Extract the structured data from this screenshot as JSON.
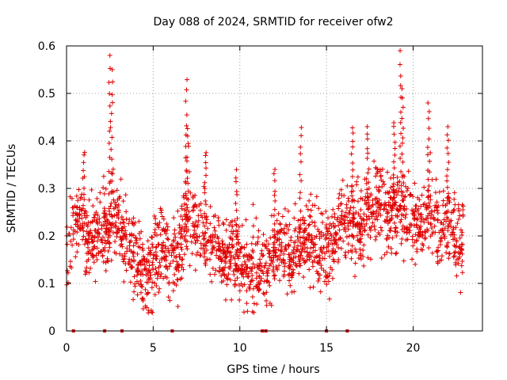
{
  "chart_data": {
    "type": "scatter",
    "title": "Day 088 of 2024, SRMTID for receiver ofw2",
    "xlabel": "GPS time / hours",
    "ylabel": "SRMTID / TECUs",
    "xlim": [
      0,
      24
    ],
    "ylim": [
      0,
      0.6
    ],
    "xticks": [
      0,
      5,
      10,
      15,
      20
    ],
    "yticks": [
      0,
      0.1,
      0.2,
      0.3,
      0.4,
      0.5,
      0.6
    ],
    "xtick_labels": [
      "0",
      "5",
      "10",
      "15",
      "20"
    ],
    "ytick_labels": [
      "0",
      "0.1",
      "0.2",
      "0.3",
      "0.4",
      "0.5",
      "0.6"
    ],
    "grid": true,
    "marker": "+",
    "color": "#e00000",
    "trend": {
      "x": [
        0.0,
        0.4,
        0.8,
        1.2,
        1.6,
        2.0,
        2.4,
        2.7,
        3.0,
        3.5,
        4.0,
        4.5,
        5.0,
        5.5,
        6.0,
        6.5,
        7.0,
        7.5,
        8.0,
        8.5,
        9.0,
        9.5,
        10.0,
        10.5,
        11.0,
        11.5,
        12.0,
        12.5,
        13.0,
        13.5,
        14.0,
        14.5,
        15.0,
        15.5,
        16.0,
        16.5,
        17.0,
        17.5,
        18.0,
        18.5,
        19.0,
        19.5,
        20.0,
        20.5,
        21.0,
        21.5,
        22.0,
        22.5,
        22.9
      ],
      "y": [
        0.17,
        0.22,
        0.24,
        0.19,
        0.2,
        0.2,
        0.22,
        0.25,
        0.22,
        0.18,
        0.15,
        0.12,
        0.15,
        0.18,
        0.13,
        0.18,
        0.23,
        0.22,
        0.21,
        0.18,
        0.15,
        0.16,
        0.15,
        0.13,
        0.13,
        0.12,
        0.16,
        0.18,
        0.15,
        0.18,
        0.2,
        0.17,
        0.17,
        0.2,
        0.22,
        0.23,
        0.22,
        0.25,
        0.26,
        0.25,
        0.27,
        0.25,
        0.22,
        0.23,
        0.25,
        0.22,
        0.24,
        0.2,
        0.18
      ]
    },
    "spread": 0.06,
    "spikes": [
      {
        "x": 2.5,
        "peak": 0.58
      },
      {
        "x": 2.6,
        "peak": 0.55
      },
      {
        "x": 6.9,
        "peak": 0.53
      },
      {
        "x": 7.0,
        "peak": 0.43
      },
      {
        "x": 19.3,
        "peak": 0.59
      },
      {
        "x": 19.4,
        "peak": 0.51
      },
      {
        "x": 20.9,
        "peak": 0.48
      },
      {
        "x": 13.5,
        "peak": 0.43
      },
      {
        "x": 16.5,
        "peak": 0.43
      },
      {
        "x": 17.4,
        "peak": 0.43
      },
      {
        "x": 18.9,
        "peak": 0.44
      },
      {
        "x": 22.0,
        "peak": 0.43
      },
      {
        "x": 1.0,
        "peak": 0.38
      },
      {
        "x": 8.0,
        "peak": 0.38
      },
      {
        "x": 9.8,
        "peak": 0.34
      },
      {
        "x": 12.0,
        "peak": 0.34
      }
    ],
    "n_points": 2000,
    "zero_markers": [
      0.4,
      2.2,
      3.2,
      6.1,
      11.3,
      11.5,
      15.0,
      16.2
    ]
  }
}
